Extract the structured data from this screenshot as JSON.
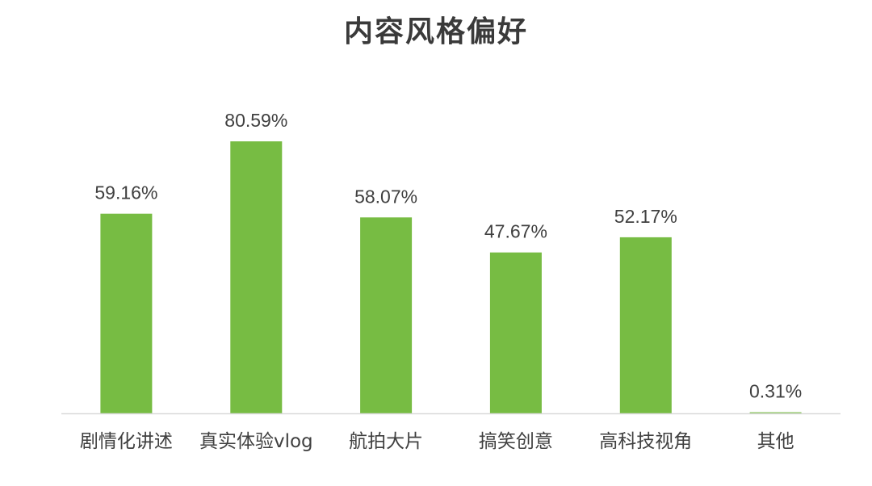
{
  "chart_data": {
    "type": "bar",
    "title": "内容风格偏好",
    "categories": [
      "剧情化讲述",
      "真实体验vlog",
      "航拍大片",
      "搞笑创意",
      "高科技视角",
      "其他"
    ],
    "values": [
      59.16,
      80.59,
      58.07,
      47.67,
      52.17,
      0.31
    ],
    "data_labels": [
      "59.16%",
      "80.59%",
      "58.07%",
      "47.67%",
      "52.17%",
      "0.31%"
    ],
    "ylim": [
      0,
      100
    ],
    "grid": false,
    "legend": "none",
    "bar_color": "#77bc43",
    "axis_color": "#d9d9d9"
  }
}
